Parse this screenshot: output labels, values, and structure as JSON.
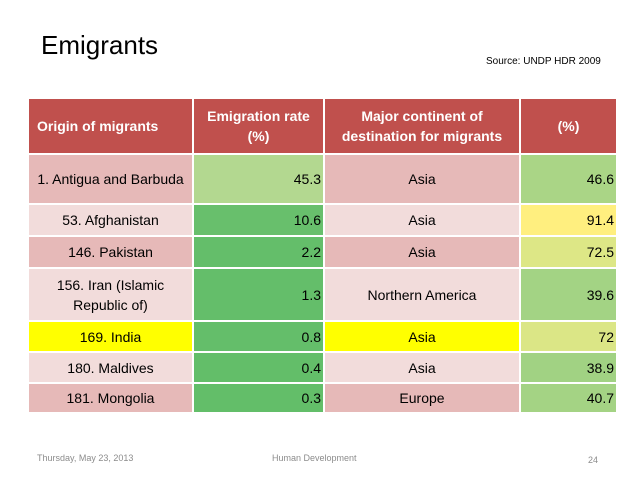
{
  "slide": {
    "title": "Emigrants",
    "source": "Source: UNDP HDR 2009"
  },
  "table": {
    "headers": {
      "origin": "Origin of migrants",
      "rate": "Emigration rate (%)",
      "continent": "Major continent of destination for migrants",
      "percent": "(%)"
    },
    "rows": [
      {
        "origin": "1. Antigua and Barbuda",
        "rate": "45.3",
        "continent": "Asia",
        "percent": "46.6",
        "rate_color": "#b3d890",
        "percent_color": "#aad586"
      },
      {
        "origin": "53. Afghanistan",
        "rate": "10.6",
        "continent": "Asia",
        "percent": "91.4",
        "rate_color": "#68bf6c",
        "percent_color": "#ffef7f"
      },
      {
        "origin": "146. Pakistan",
        "rate": "2.2",
        "continent": "Asia",
        "percent": "72.5",
        "rate_color": "#64be6a",
        "percent_color": "#dde786"
      },
      {
        "origin": "156. Iran (Islamic Republic of)",
        "rate": "1.3",
        "continent": "Northern America",
        "percent": "39.6",
        "rate_color": "#64be6a",
        "percent_color": "#a3d384"
      },
      {
        "origin": "169. India",
        "rate": "0.8",
        "continent": "Asia",
        "percent": "72",
        "rate_color": "#64be6a",
        "percent_color": "#dbe686",
        "highlight": true
      },
      {
        "origin": "180. Maldives",
        "rate": "0.4",
        "continent": "Asia",
        "percent": "38.9",
        "rate_color": "#63be69",
        "percent_color": "#a1d283"
      },
      {
        "origin": "181. Mongolia",
        "rate": "0.3",
        "continent": "Europe",
        "percent": "40.7",
        "rate_color": "#63be69",
        "percent_color": "#a4d384"
      }
    ]
  },
  "footer": {
    "date": "Thursday, May 23, 2013",
    "center": "Human Development",
    "page": "24"
  }
}
